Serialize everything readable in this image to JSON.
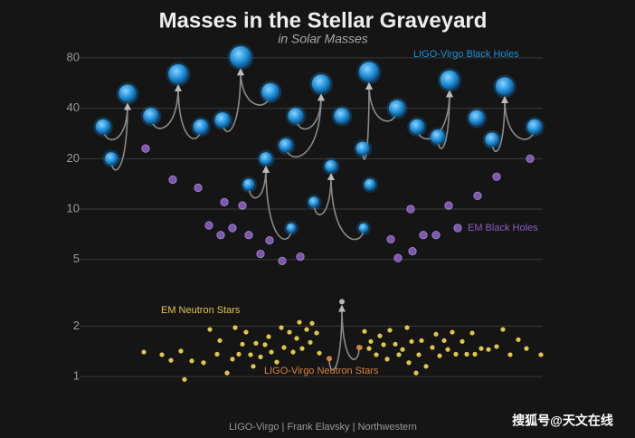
{
  "chart_data": {
    "type": "scatter",
    "title": "Masses in the Stellar Graveyard",
    "subtitle": "in Solar Masses",
    "credit": "LIGO-Virgo | Frank Elavsky | Northwestern",
    "watermark": "搜狐号@天文在线",
    "log_y": true,
    "grid": true,
    "ylim": [
      0.8,
      100
    ],
    "yticks": [
      1,
      2,
      5,
      10,
      20,
      40,
      80
    ],
    "xlim": [
      0,
      500
    ],
    "series": [
      {
        "name": "LIGO-Virgo Black Holes",
        "color": "#1f8fd8",
        "x": [
          14,
          23,
          41,
          67,
          122,
          97,
          146,
          199,
          166,
          175,
          222,
          194,
          216,
          227,
          255,
          247,
          302,
          266,
          278,
          301,
          308,
          309,
          339,
          361,
          384,
          397,
          427,
          444,
          458,
          491
        ],
        "values": [
          31,
          20,
          49,
          36,
          31,
          64,
          34,
          50,
          81,
          14,
          7.7,
          20,
          24,
          36,
          56,
          11,
          7.7,
          18,
          36,
          23,
          66,
          14,
          40,
          31,
          27,
          59,
          35,
          26,
          54,
          31
        ],
        "mergers": [
          [
            0,
            1,
            2
          ],
          [
            3,
            4,
            5
          ],
          [
            6,
            7,
            8
          ],
          [
            9,
            10,
            11
          ],
          [
            12,
            13,
            14
          ],
          [
            15,
            16,
            17
          ],
          [
            19,
            22,
            20
          ],
          [
            23,
            24,
            25
          ],
          [
            27,
            29,
            28
          ]
        ]
      },
      {
        "name": "EM Black Holes",
        "color": "#8a5cc2",
        "x": [
          61,
          91,
          119,
          131,
          144,
          148,
          157,
          168,
          175,
          188,
          198,
          212,
          232,
          332,
          340,
          354,
          356,
          368,
          382,
          396,
          406,
          428,
          449,
          486
        ],
        "values": [
          23,
          15,
          13.4,
          8,
          7,
          11,
          7.7,
          10.5,
          7,
          5.4,
          6.5,
          4.9,
          5.2,
          6.6,
          5.1,
          10,
          5.6,
          7,
          7,
          10.5,
          7.7,
          12,
          15.6,
          20
        ]
      },
      {
        "name": "EM Neutron Stars",
        "color": "#e0c64a",
        "x": [
          59,
          79,
          89,
          100,
          104,
          112,
          125,
          132,
          140,
          143,
          151,
          157,
          160,
          164,
          168,
          172,
          177,
          180,
          183,
          188,
          193,
          197,
          200,
          206,
          211,
          214,
          220,
          224,
          228,
          231,
          234,
          239,
          243,
          245,
          250,
          253,
          298,
          303,
          308,
          310,
          316,
          320,
          324,
          328,
          331,
          337,
          341,
          345,
          350,
          352,
          355,
          360,
          363,
          366,
          371,
          378,
          382,
          386,
          391,
          395,
          400,
          404,
          411,
          416,
          422,
          425,
          432,
          440,
          449,
          456,
          464,
          473,
          482,
          498
        ],
        "values": [
          1.4,
          1.35,
          1.25,
          1.42,
          0.96,
          1.24,
          1.21,
          1.91,
          1.36,
          1.64,
          1.05,
          1.27,
          1.96,
          1.36,
          1.56,
          1.84,
          1.35,
          1.15,
          1.58,
          1.31,
          1.55,
          1.73,
          1.4,
          1.22,
          1.96,
          1.49,
          1.84,
          1.4,
          1.69,
          2.11,
          1.47,
          1.91,
          1.6,
          2.08,
          1.82,
          1.38,
          1.49,
          1.86,
          1.47,
          1.62,
          1.35,
          1.75,
          1.55,
          1.27,
          1.89,
          1.56,
          1.35,
          1.45,
          1.96,
          1.21,
          1.62,
          1.05,
          1.35,
          1.64,
          1.15,
          1.49,
          1.79,
          1.33,
          1.64,
          1.45,
          1.84,
          1.36,
          1.62,
          1.36,
          1.82,
          1.36,
          1.47,
          1.45,
          1.51,
          1.91,
          1.35,
          1.66,
          1.47,
          1.35
        ]
      },
      {
        "name": "LIGO-Virgo Neutron Stars",
        "color": "#d9823b",
        "x": [
          264,
          297,
          278
        ],
        "values": [
          1.28,
          1.49,
          2.8
        ],
        "point_colors": [
          "#d9823b",
          "#d9823b",
          "#b8b8b8"
        ],
        "mergers": [
          [
            0,
            1,
            2
          ]
        ]
      }
    ]
  }
}
